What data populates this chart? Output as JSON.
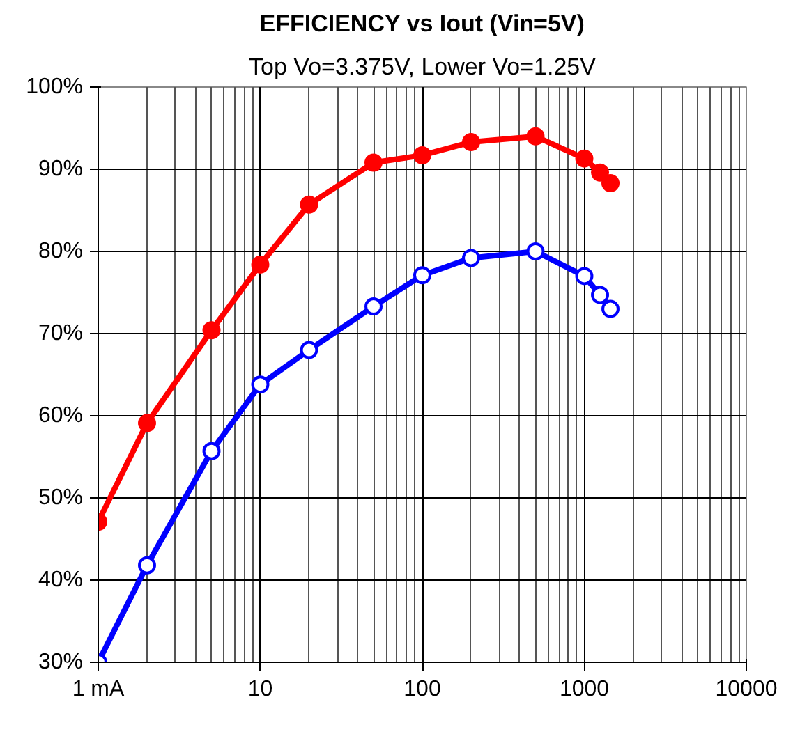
{
  "chart_data": {
    "type": "line",
    "title": "EFFICIENCY vs Iout (Vin=5V)",
    "subtitle": "Top Vo=3.375V, Lower Vo=1.25V",
    "x": [
      1,
      2,
      5,
      10,
      20,
      50,
      100,
      200,
      500,
      1000,
      1250,
      1450
    ],
    "series": [
      {
        "color": "#ff0000",
        "values": [
          47.1,
          59.1,
          70.4,
          78.4,
          85.7,
          90.8,
          91.7,
          93.3,
          94.0,
          91.3,
          89.6,
          88.3
        ]
      },
      {
        "color": "#0000ff",
        "values": [
          30.0,
          41.8,
          55.7,
          63.8,
          68.0,
          73.3,
          77.1,
          79.2,
          80.0,
          77.0,
          74.7,
          73.0
        ]
      }
    ],
    "log": "x",
    "xlim": [
      1,
      10000
    ],
    "xticks": [
      {
        "value": 1,
        "label": "1 mA"
      },
      10,
      100,
      1000,
      10000
    ],
    "ylim": [
      30,
      100
    ],
    "yticks": [
      {
        "value": 30,
        "label": "30%"
      },
      {
        "value": 40,
        "label": "40%"
      },
      {
        "value": 50,
        "label": "50%"
      },
      {
        "value": 60,
        "label": "60%"
      },
      {
        "value": 70,
        "label": "70%"
      },
      {
        "value": 80,
        "label": "80%"
      },
      {
        "value": 90,
        "label": "90%"
      },
      {
        "value": 100,
        "label": "100%"
      }
    ],
    "grid": true,
    "marker": "circle",
    "line_style": "solid"
  }
}
